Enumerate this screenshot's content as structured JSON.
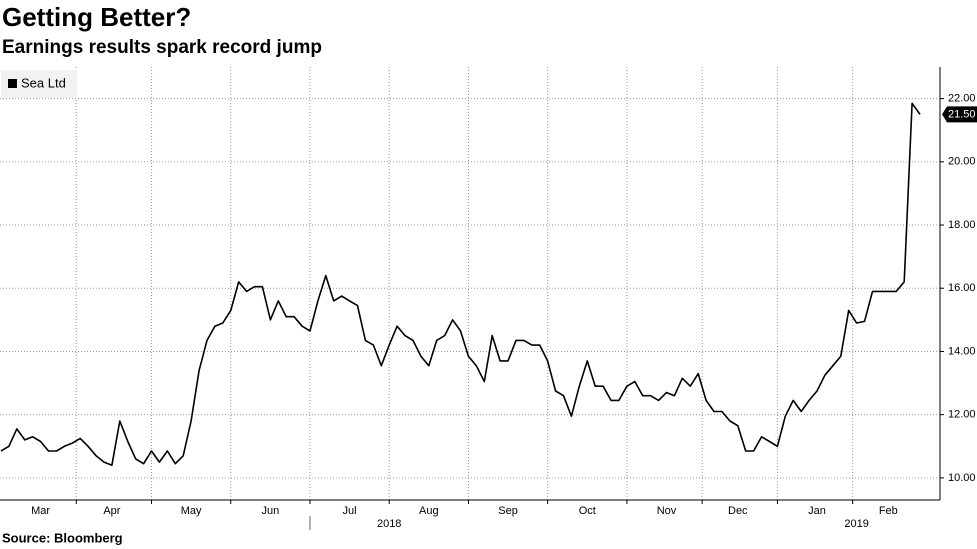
{
  "chart_data": {
    "type": "line",
    "title": "Getting Better?",
    "subtitle": "Earnings results spark record jump",
    "source": "Source: Bloomberg",
    "categories": [
      null,
      null,
      null,
      null,
      null,
      "Mar",
      null,
      null,
      null,
      null,
      null,
      null,
      null,
      null,
      "Apr",
      null,
      null,
      null,
      null,
      null,
      null,
      null,
      null,
      null,
      "May",
      null,
      null,
      null,
      null,
      null,
      null,
      null,
      null,
      null,
      "Jun",
      null,
      null,
      null,
      null,
      null,
      null,
      null,
      null,
      null,
      "Jul",
      null,
      null,
      null,
      null,
      null,
      null,
      null,
      null,
      null,
      "Aug",
      null,
      null,
      null,
      null,
      null,
      null,
      null,
      null,
      null,
      "Sep",
      null,
      null,
      null,
      null,
      null,
      null,
      null,
      null,
      null,
      "Oct",
      null,
      null,
      null,
      null,
      null,
      null,
      null,
      null,
      null,
      "Nov",
      null,
      null,
      null,
      null,
      null,
      null,
      null,
      null,
      "Dec",
      null,
      null,
      null,
      null,
      null,
      null,
      null,
      null,
      null,
      "Jan",
      null,
      null,
      null,
      null,
      null,
      null,
      null,
      null,
      "Feb",
      null,
      null,
      null,
      null
    ],
    "year_categories": [
      null,
      null,
      null,
      null,
      null,
      null,
      null,
      null,
      null,
      null,
      null,
      null,
      null,
      null,
      null,
      null,
      null,
      null,
      null,
      null,
      null,
      null,
      null,
      null,
      null,
      null,
      null,
      null,
      null,
      null,
      null,
      null,
      null,
      null,
      null,
      null,
      null,
      null,
      null,
      null,
      null,
      null,
      null,
      null,
      null,
      null,
      null,
      null,
      null,
      "2018",
      null,
      null,
      null,
      null,
      null,
      null,
      null,
      null,
      null,
      null,
      null,
      null,
      null,
      null,
      null,
      null,
      null,
      null,
      null,
      null,
      null,
      null,
      null,
      null,
      null,
      null,
      null,
      null,
      null,
      null,
      null,
      null,
      null,
      null,
      null,
      null,
      null,
      null,
      null,
      null,
      null,
      null,
      null,
      null,
      null,
      null,
      null,
      null,
      null,
      null,
      null,
      null,
      null,
      null,
      null,
      null,
      null,
      null,
      "2019",
      null,
      null,
      null,
      null,
      null,
      null,
      null,
      null
    ],
    "series": [
      {
        "name": "Sea Ltd",
        "color": "#000000",
        "end_label": "21.50",
        "values": [
          10.85,
          11.0,
          11.55,
          11.2,
          11.3,
          11.15,
          10.85,
          10.85,
          11.0,
          11.1,
          11.25,
          11.0,
          10.7,
          10.5,
          10.4,
          11.8,
          11.15,
          10.6,
          10.45,
          10.85,
          10.5,
          10.85,
          10.45,
          10.7,
          11.8,
          13.4,
          14.35,
          14.8,
          14.9,
          15.3,
          16.2,
          15.9,
          16.05,
          16.05,
          15.0,
          15.6,
          15.1,
          15.1,
          14.8,
          14.65,
          15.6,
          16.4,
          15.6,
          15.75,
          15.6,
          15.45,
          14.35,
          14.2,
          13.55,
          14.2,
          14.8,
          14.5,
          14.35,
          13.85,
          13.55,
          14.35,
          14.5,
          15.0,
          14.65,
          13.85,
          13.55,
          13.05,
          14.5,
          13.7,
          13.7,
          14.35,
          14.35,
          14.2,
          14.2,
          13.7,
          12.75,
          12.6,
          11.95,
          12.9,
          13.7,
          12.9,
          12.9,
          12.45,
          12.45,
          12.9,
          13.05,
          12.6,
          12.6,
          12.45,
          12.7,
          12.6,
          13.15,
          12.9,
          13.3,
          12.45,
          12.1,
          12.1,
          11.8,
          11.65,
          10.85,
          10.85,
          11.3,
          11.15,
          11.0,
          11.95,
          12.45,
          12.1,
          12.45,
          12.75,
          13.25,
          13.55,
          13.85,
          15.3,
          14.9,
          14.95,
          15.9,
          15.9,
          15.9,
          15.9,
          16.2,
          21.85,
          21.5
        ]
      }
    ],
    "ylim": [
      9.3,
      23.0
    ],
    "yticks": [
      {
        "value": 10,
        "label": "10.00"
      },
      {
        "value": 12,
        "label": "12.00"
      },
      {
        "value": 14,
        "label": "14.00"
      },
      {
        "value": 16,
        "label": "16.00"
      },
      {
        "value": 18,
        "label": "18.00"
      },
      {
        "value": 20,
        "label": "20.00"
      },
      {
        "value": 22,
        "label": "22.00"
      }
    ],
    "grid": true
  }
}
